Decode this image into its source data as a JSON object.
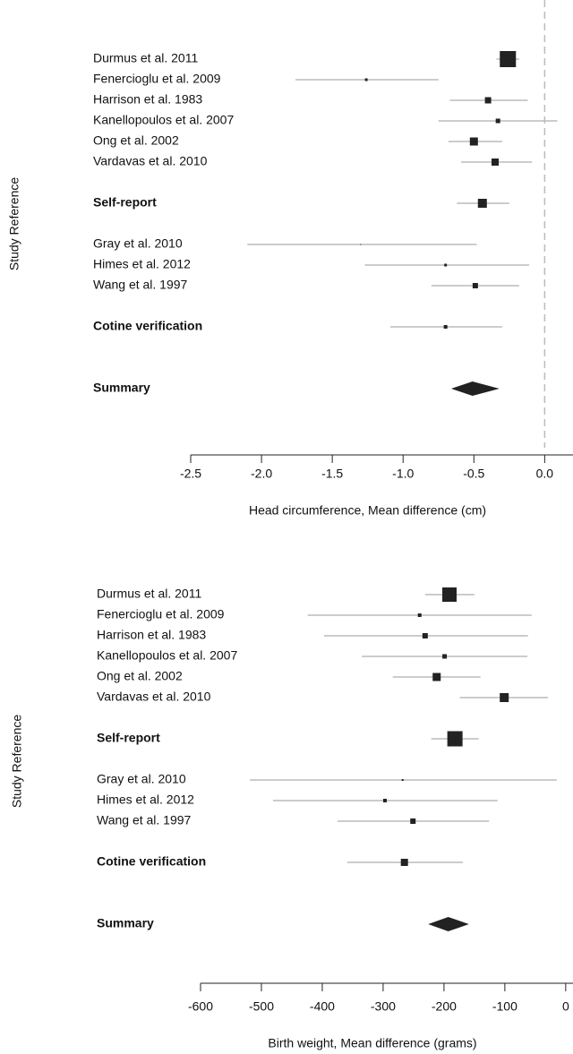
{
  "chart_data": [
    {
      "type": "forest",
      "x_label": "Head circumference, Mean difference (cm)",
      "y_label": "Study Reference",
      "categories": [
        "Durmus et al. 2011",
        "Fenercioglu et al. 2009",
        "Harrison et al. 1983",
        "Kanellopoulos et al. 2007",
        "Ong et al. 2002",
        "Vardavas et al. 2010",
        null,
        "Self-report",
        null,
        "Gray et al. 2010",
        "Himes et al. 2012",
        "Wang et al. 1997",
        null,
        "Cotine verification",
        null,
        null,
        "Summary"
      ],
      "values": [
        -0.26,
        -1.26,
        -0.4,
        -0.33,
        -0.5,
        -0.35,
        null,
        -0.44,
        null,
        -1.3,
        -0.7,
        -0.49,
        null,
        -0.7,
        null,
        null,
        -0.51
      ],
      "lower": [
        -0.34,
        -1.76,
        -0.67,
        -0.75,
        -0.68,
        -0.59,
        null,
        -0.62,
        null,
        -2.1,
        -1.27,
        -0.8,
        null,
        -1.09,
        null,
        null,
        -0.66
      ],
      "upper": [
        -0.18,
        -0.75,
        -0.12,
        0.09,
        -0.3,
        -0.09,
        null,
        -0.25,
        null,
        -0.48,
        -0.11,
        -0.18,
        null,
        -0.3,
        null,
        null,
        -0.32
      ],
      "weights": [
        18,
        3,
        7,
        5,
        9,
        8,
        null,
        10,
        null,
        1,
        3,
        6,
        null,
        4,
        null,
        null,
        null
      ],
      "shapes": [
        "square",
        "square",
        "square",
        "square",
        "square",
        "square",
        null,
        "square",
        null,
        "square",
        "square",
        "square",
        null,
        "square",
        null,
        null,
        "diamond"
      ],
      "bold": [
        false,
        false,
        false,
        false,
        false,
        false,
        null,
        true,
        null,
        false,
        false,
        false,
        null,
        true,
        null,
        null,
        true
      ],
      "xlim": [
        -2.5,
        0.2
      ],
      "xticks": [
        -2.5,
        {
          "value": -2,
          "label": "-2.0"
        },
        -1.5,
        {
          "value": -1,
          "label": "-1.0"
        },
        -0.5,
        {
          "value": 0,
          "label": "0.0"
        }
      ],
      "reference_line": 0,
      "ci_color": "#bbbbbb",
      "box_color": "#222222"
    },
    {
      "type": "forest",
      "x_label": "Birth weight, Mean difference (grams)",
      "y_label": "Study Reference",
      "categories": [
        "Durmus et al. 2011",
        "Fenercioglu et al. 2009",
        "Harrison et al. 1983",
        "Kanellopoulos et al. 2007",
        "Ong et al. 2002",
        "Vardavas et al. 2010",
        null,
        "Self-report",
        null,
        "Gray et al. 2010",
        "Himes et al. 2012",
        "Wang et al. 1997",
        null,
        "Cotine verification",
        null,
        null,
        "Summary"
      ],
      "values": [
        -191,
        -240,
        -231,
        -199,
        -212,
        -101,
        null,
        -182,
        null,
        -268,
        -297,
        -251,
        null,
        -265,
        null,
        null,
        -193
      ],
      "lower": [
        -231,
        -424,
        -397,
        -335,
        -284,
        -174,
        null,
        -221,
        null,
        -519,
        -481,
        -375,
        null,
        -359,
        null,
        null,
        -226
      ],
      "upper": [
        -150,
        -56,
        -62,
        -63,
        -140,
        -29,
        null,
        -143,
        null,
        -15,
        -112,
        -126,
        null,
        -169,
        null,
        null,
        -159
      ],
      "weights": [
        16,
        4,
        6,
        5,
        9,
        10,
        null,
        17,
        null,
        2,
        4,
        6,
        null,
        8,
        null,
        null,
        null
      ],
      "shapes": [
        "square",
        "square",
        "square",
        "square",
        "square",
        "square",
        null,
        "square",
        null,
        "square",
        "square",
        "square",
        null,
        "square",
        null,
        null,
        "diamond"
      ],
      "bold": [
        false,
        false,
        false,
        false,
        false,
        false,
        null,
        true,
        null,
        false,
        false,
        false,
        null,
        true,
        null,
        null,
        true
      ],
      "xlim": [
        -600,
        12
      ],
      "xticks": [
        -600,
        -500,
        -400,
        -300,
        -200,
        -100,
        0
      ],
      "ci_color": "#bbbbbb",
      "box_color": "#222222"
    }
  ]
}
